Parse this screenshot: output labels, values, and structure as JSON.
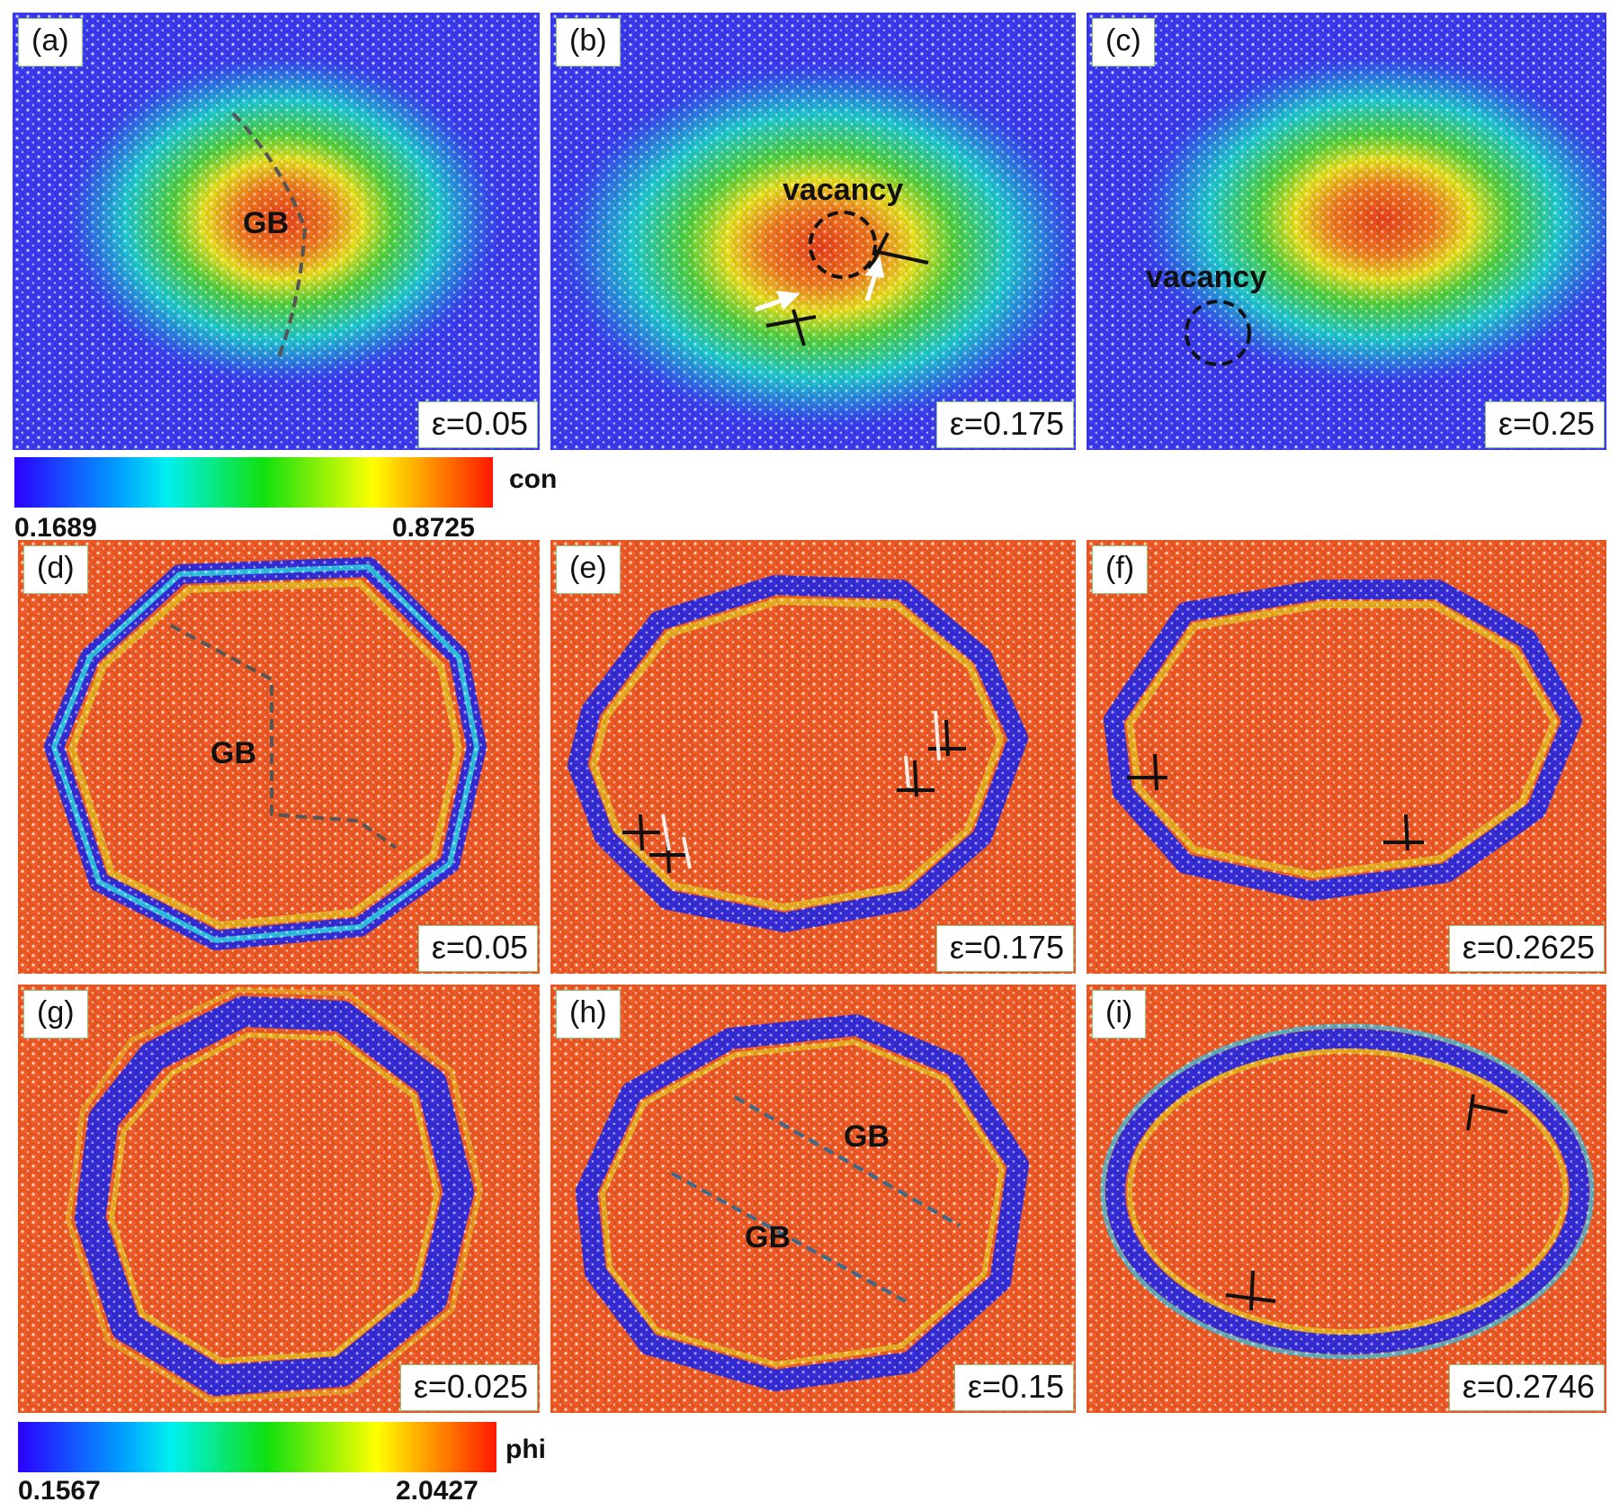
{
  "figure": {
    "panels": [
      {
        "id": "a",
        "label": "(a)",
        "strain": "ε=0.05",
        "annotation": "GB"
      },
      {
        "id": "b",
        "label": "(b)",
        "strain": "ε=0.175",
        "annotation": "vacancy"
      },
      {
        "id": "c",
        "label": "(c)",
        "strain": "ε=0.25",
        "annotation": "vacancy"
      },
      {
        "id": "d",
        "label": "(d)",
        "strain": "ε=0.05",
        "annotation": "GB"
      },
      {
        "id": "e",
        "label": "(e)",
        "strain": "ε=0.175"
      },
      {
        "id": "f",
        "label": "(f)",
        "strain": "ε=0.2625"
      },
      {
        "id": "g",
        "label": "(g)",
        "strain": "ε=0.025"
      },
      {
        "id": "h",
        "label": "(h)",
        "strain": "ε=0.15",
        "annotation": "GB",
        "annotation2": "GB"
      },
      {
        "id": "i",
        "label": "(i)",
        "strain": "ε=0.2746"
      }
    ],
    "colorbars": [
      {
        "name": "con",
        "min": "0.1689",
        "max": "0.8725",
        "colors": [
          "#2b00ff",
          "#00d9ff",
          "#10e010",
          "#ffff00",
          "#ff8c00",
          "#ff2000"
        ]
      },
      {
        "name": "phi",
        "min": "0.1567",
        "max": "2.0427",
        "colors": [
          "#2b00ff",
          "#00d9ff",
          "#10e010",
          "#ffff00",
          "#ff8c00",
          "#ff2000"
        ]
      }
    ]
  }
}
